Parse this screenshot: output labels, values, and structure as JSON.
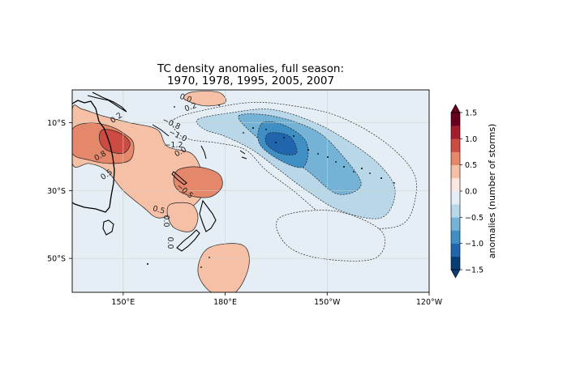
{
  "chart_data": {
    "type": "heatmap",
    "title": "TC density anomalies, full season:",
    "subtitle": "1970, 1978, 1995, 2005, 2007",
    "x_ticks": [
      {
        "lon": 150,
        "label": "150°E"
      },
      {
        "lon": 180,
        "label": "180°E"
      },
      {
        "lon": 210,
        "label": "150°W"
      },
      {
        "lon": 240,
        "label": "120°W"
      }
    ],
    "y_ticks": [
      {
        "lat": -10,
        "label": "10°S"
      },
      {
        "lat": -30,
        "label": "30°S"
      },
      {
        "lat": -50,
        "label": "50°S"
      }
    ],
    "lon_range": [
      135,
      240
    ],
    "lat_range": [
      -60,
      -0.3
    ],
    "colorbar": {
      "label": "anomalies (number of storms)",
      "levels": [
        -1.5,
        -1.25,
        -1.0,
        -0.75,
        -0.5,
        -0.25,
        0,
        0.25,
        0.5,
        0.75,
        1.0,
        1.25,
        1.5
      ],
      "tick_values": [
        -1.5,
        -1.0,
        -0.5,
        0.0,
        0.5,
        1.0,
        1.5
      ],
      "tick_labels": [
        "−1.5",
        "−1.0",
        "−0.5",
        "0.0",
        "0.5",
        "1.0",
        "1.5"
      ],
      "colors": [
        "#0a3d75",
        "#2166ac",
        "#3f8fc5",
        "#74b2d6",
        "#b8d7e8",
        "#e4eef4",
        "#fae7df",
        "#f5c0a5",
        "#e4876a",
        "#cc4c44",
        "#a51d2d",
        "#67001f"
      ]
    },
    "contour_labels": [
      "0.0",
      "0.2",
      "0.2",
      "0.8",
      "0.5",
      "0.5",
      "−0.8",
      "−1.0",
      "−1.2",
      "−0.5",
      "0.0",
      "0.0",
      "0.0"
    ],
    "positive_regions": [
      {
        "name": "australia-coral-sea",
        "level": 0.25,
        "points": [
          [
            135,
            -6
          ],
          [
            138,
            -6
          ],
          [
            144,
            -8
          ],
          [
            152,
            -10
          ],
          [
            160,
            -12
          ],
          [
            163,
            -17
          ],
          [
            170,
            -19
          ],
          [
            173,
            -24
          ],
          [
            174,
            -30
          ],
          [
            170,
            -35
          ],
          [
            165,
            -37
          ],
          [
            160,
            -38
          ],
          [
            156,
            -35
          ],
          [
            150,
            -30
          ],
          [
            145,
            -24
          ],
          [
            140,
            -22
          ],
          [
            135,
            -22
          ]
        ]
      },
      {
        "name": "queensland-max",
        "level": 0.5,
        "points": [
          [
            135,
            -12
          ],
          [
            140,
            -10
          ],
          [
            146,
            -11
          ],
          [
            150,
            -13
          ],
          [
            153,
            -16
          ],
          [
            152,
            -21
          ],
          [
            146,
            -22
          ],
          [
            140,
            -21
          ],
          [
            135,
            -19
          ]
        ]
      },
      {
        "name": "queensland-core",
        "level": 0.75,
        "points": [
          [
            144,
            -12
          ],
          [
            149,
            -13
          ],
          [
            152,
            -16
          ],
          [
            150,
            -19
          ],
          [
            145,
            -18
          ],
          [
            143,
            -15
          ]
        ]
      },
      {
        "name": "fiji-tonga-max",
        "level": 0.5,
        "points": [
          [
            166,
            -24
          ],
          [
            172,
            -23
          ],
          [
            178,
            -25
          ],
          [
            179,
            -29
          ],
          [
            175,
            -32
          ],
          [
            168,
            -31
          ],
          [
            165,
            -28
          ]
        ]
      },
      {
        "name": "tasman-sea",
        "level": 0.25,
        "points": [
          [
            164,
            -34
          ],
          [
            170,
            -34
          ],
          [
            172,
            -38
          ],
          [
            170,
            -42
          ],
          [
            165,
            -41
          ],
          [
            163,
            -37
          ]
        ]
      },
      {
        "name": "north-islands",
        "level": 0.25,
        "points": [
          [
            170,
            -1
          ],
          [
            178,
            -1
          ],
          [
            180,
            -4
          ],
          [
            174,
            -5
          ],
          [
            168,
            -3
          ]
        ]
      },
      {
        "name": "south-ocean",
        "level": 0.25,
        "points": [
          [
            175,
            -47
          ],
          [
            185,
            -46
          ],
          [
            187,
            -52
          ],
          [
            183,
            -60
          ],
          [
            176,
            -60
          ],
          [
            172,
            -54
          ]
        ]
      }
    ],
    "negative_regions": [
      {
        "name": "central-pacific",
        "level": -0.25,
        "points": [
          [
            165,
            -9
          ],
          [
            175,
            -6
          ],
          [
            188,
            -4
          ],
          [
            200,
            -5
          ],
          [
            213,
            -8
          ],
          [
            226,
            -15
          ],
          [
            235,
            -24
          ],
          [
            236,
            -32
          ],
          [
            232,
            -40
          ],
          [
            220,
            -41
          ],
          [
            210,
            -38
          ],
          [
            200,
            -30
          ],
          [
            192,
            -24
          ],
          [
            186,
            -18
          ],
          [
            178,
            -16
          ],
          [
            170,
            -15
          ],
          [
            166,
            -13
          ]
        ]
      },
      {
        "name": "central-pacific-mid",
        "level": -0.5,
        "points": [
          [
            172,
            -9
          ],
          [
            182,
            -7
          ],
          [
            193,
            -6
          ],
          [
            204,
            -9
          ],
          [
            214,
            -14
          ],
          [
            225,
            -22
          ],
          [
            230,
            -30
          ],
          [
            226,
            -38
          ],
          [
            214,
            -36
          ],
          [
            204,
            -30
          ],
          [
            196,
            -24
          ],
          [
            188,
            -18
          ],
          [
            180,
            -14
          ],
          [
            174,
            -12
          ]
        ]
      },
      {
        "name": "central-pacific-strong",
        "level": -0.75,
        "points": [
          [
            184,
            -8
          ],
          [
            194,
            -8
          ],
          [
            206,
            -12
          ],
          [
            213,
            -18
          ],
          [
            220,
            -28
          ],
          [
            213,
            -31
          ],
          [
            204,
            -24
          ],
          [
            196,
            -19
          ],
          [
            189,
            -14
          ]
        ]
      },
      {
        "name": "central-pacific-core",
        "level": -1.0,
        "points": [
          [
            191,
            -10
          ],
          [
            198,
            -11
          ],
          [
            204,
            -16
          ],
          [
            203,
            -23
          ],
          [
            196,
            -21
          ],
          [
            190,
            -16
          ]
        ]
      },
      {
        "name": "central-pacific-peak",
        "level": -1.25,
        "points": [
          [
            193,
            -13
          ],
          [
            199,
            -14
          ],
          [
            201,
            -19
          ],
          [
            196,
            -19
          ],
          [
            192,
            -16
          ]
        ]
      },
      {
        "name": "south-east-pacific",
        "level": -0.25,
        "points": [
          [
            196,
            -38
          ],
          [
            212,
            -36
          ],
          [
            226,
            -42
          ],
          [
            224,
            -50
          ],
          [
            208,
            -50
          ],
          [
            198,
            -46
          ]
        ]
      }
    ]
  }
}
